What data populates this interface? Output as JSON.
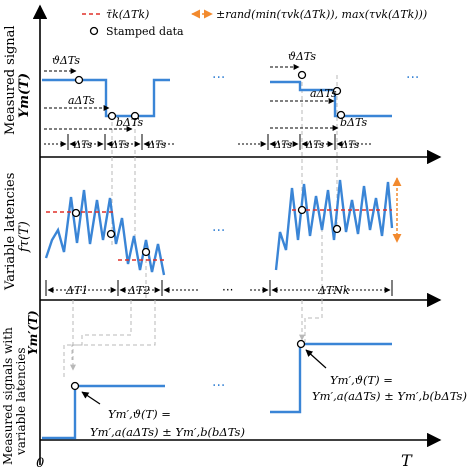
{
  "legend": {
    "mean_latency_label": "τ̄k(ΔTk)",
    "random_range_label": "±rand(min(τvk(ΔTk)), max(τvk(ΔTk)))",
    "stamped_label": "Stamped data"
  },
  "panels": {
    "top": {
      "ylabel": "Measured signal",
      "ysymbol": "Ym(T)",
      "annotations": {
        "theta_left": "ϑΔTs",
        "a_left": "aΔTs",
        "b_left": "bΔTs",
        "theta_right": "ϑΔTs",
        "a_right": "aΔTs",
        "b_right": "bΔTs"
      },
      "period_labels": [
        "ΔTs",
        "ΔTs",
        "ΔTs",
        "ΔTs",
        "ΔTs",
        "ΔTs"
      ],
      "ellipsis": "···"
    },
    "middle": {
      "ylabel": "Variable latencies",
      "ysymbol": "fτ(T)",
      "interval_labels": [
        "ΔT1",
        "ΔT2",
        "ΔTNk"
      ],
      "ellipsis": "···"
    },
    "bottom": {
      "ylabel_line1": "Measured signals with",
      "ylabel_line2": "variable latencies",
      "ysymbol": "Ym′(T)",
      "eq_right_line1": "Ym′,ϑ(T) =",
      "eq_right_line2": "Ym′,a(aΔTs) ± Ym′,b(bΔTs)",
      "eq_left_line1": "Ym′,ϑ(T) =",
      "eq_left_line2": "Ym′,a(aΔTs) ± Ym′,b(bΔTs)",
      "ellipsis": "···"
    }
  },
  "xaxis": {
    "origin": "0",
    "label": "T"
  },
  "colors": {
    "signal": "#3a85d6",
    "mean": "#e0302a",
    "range": "#f28a2e",
    "guide": "#b8b8b8",
    "axis": "#000000"
  }
}
